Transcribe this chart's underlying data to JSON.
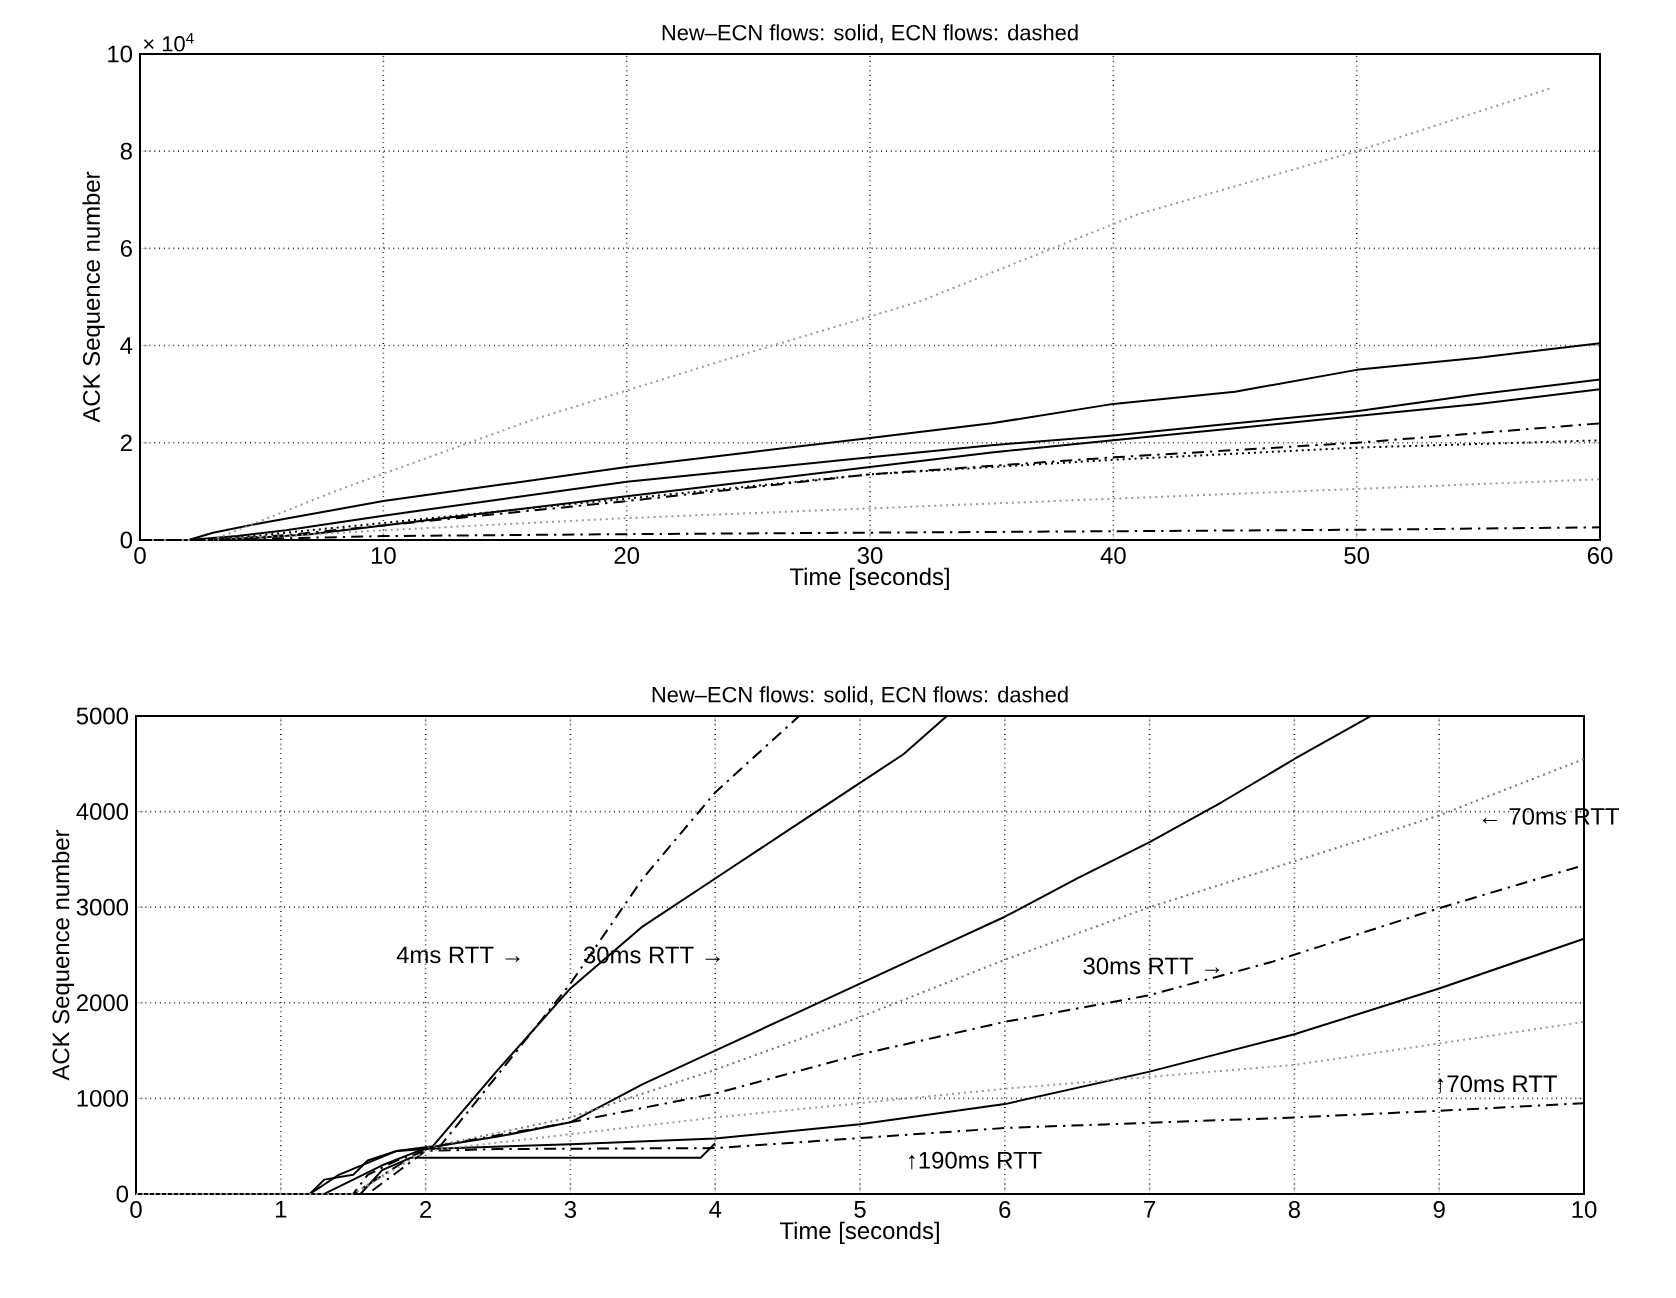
{
  "chart_data": [
    {
      "type": "line",
      "title": "New–ECN flows: solid, ECN flows: dashed",
      "xlabel": "Time [seconds]",
      "ylabel": "ACK Sequence number",
      "xlim": [
        0,
        60
      ],
      "ylim": [
        0,
        10
      ],
      "xticks": [
        0,
        10,
        20,
        30,
        40,
        50,
        60
      ],
      "yticks": [
        0,
        2,
        4,
        6,
        8,
        10
      ],
      "grid": true,
      "annotations": [
        "× 10$^{4}$"
      ],
      "series": [
        {
          "color": "#000000",
          "line_style": "solid",
          "x": [
            0,
            2,
            3,
            5,
            10,
            15,
            20,
            25,
            30,
            35,
            40,
            45,
            50,
            55,
            60
          ],
          "values": [
            0,
            0,
            0.15,
            0.35,
            0.8,
            1.15,
            1.5,
            1.8,
            2.1,
            2.4,
            2.8,
            3.05,
            3.5,
            3.75,
            4.05
          ]
        },
        {
          "color": "#000000",
          "line_style": "solid",
          "x": [
            0,
            2,
            4,
            6,
            10,
            15,
            20,
            25,
            30,
            35,
            40,
            45,
            50,
            55,
            60
          ],
          "values": [
            0,
            0,
            0.08,
            0.2,
            0.5,
            0.85,
            1.2,
            1.45,
            1.7,
            1.95,
            2.15,
            2.4,
            2.65,
            3.0,
            3.3
          ]
        },
        {
          "color": "#000000",
          "line_style": "solid",
          "x": [
            0,
            3,
            5,
            7,
            10,
            15,
            20,
            25,
            30,
            35,
            40,
            45,
            50,
            55,
            60
          ],
          "values": [
            0,
            0,
            0.05,
            0.12,
            0.3,
            0.6,
            0.9,
            1.2,
            1.5,
            1.8,
            2.05,
            2.3,
            2.55,
            2.8,
            3.1
          ]
        },
        {
          "color": "#999999",
          "line_style": "dotted",
          "x": [
            0,
            3,
            8,
            16,
            24,
            32,
            41,
            50,
            58
          ],
          "values": [
            0,
            0,
            1.0,
            2.45,
            3.7,
            4.9,
            6.7,
            8.0,
            9.3
          ]
        },
        {
          "color": "#000000",
          "line_style": "dashed",
          "x": [
            0,
            3,
            6,
            10,
            20,
            30,
            40,
            50,
            60
          ],
          "values": [
            0,
            0,
            0.1,
            0.3,
            0.8,
            1.35,
            1.7,
            2.0,
            2.4
          ]
        },
        {
          "color": "#000000",
          "line_style": "dotted",
          "x": [
            0,
            3,
            6,
            10,
            20,
            30,
            40,
            50,
            60
          ],
          "values": [
            0,
            0,
            0.15,
            0.35,
            0.85,
            1.35,
            1.65,
            1.9,
            2.05
          ]
        },
        {
          "color": "#999999",
          "line_style": "dotted",
          "x": [
            0,
            3,
            10,
            20,
            30,
            40,
            50,
            60
          ],
          "values": [
            0,
            0,
            0.2,
            0.45,
            0.65,
            0.85,
            1.05,
            1.25
          ]
        },
        {
          "color": "#000000",
          "line_style": "dashed",
          "x": [
            0,
            3,
            10,
            20,
            30,
            40,
            50,
            60
          ],
          "values": [
            0,
            0,
            0.08,
            0.12,
            0.15,
            0.18,
            0.21,
            0.26
          ]
        }
      ]
    },
    {
      "type": "line",
      "title": "New–ECN flows: solid, ECN flows: dashed",
      "xlabel": "Time [seconds]",
      "ylabel": "ACK Sequence number",
      "xlim": [
        0,
        10
      ],
      "ylim": [
        0,
        5000
      ],
      "xticks": [
        0,
        1,
        2,
        3,
        4,
        5,
        6,
        7,
        8,
        9,
        10
      ],
      "yticks": [
        0,
        1000,
        2000,
        3000,
        4000,
        5000
      ],
      "grid": true,
      "annotations": [
        "4ms RTT →",
        "30ms RTT →",
        "30ms RTT →",
        "← 70ms RTT",
        "↑70ms RTT",
        "↑190ms RTT"
      ],
      "series": [
        {
          "color": "#000000",
          "line_style": "solid",
          "x": [
            0,
            1.2,
            1.3,
            1.5,
            1.6,
            1.8,
            2.05,
            2.5,
            3,
            3.5,
            4,
            4.5,
            5,
            5.3,
            5.6
          ],
          "values": [
            0,
            0,
            150,
            200,
            350,
            450,
            500,
            1300,
            2150,
            2800,
            3300,
            3800,
            4300,
            4600,
            5000
          ]
        },
        {
          "color": "#000000",
          "line_style": "dashed",
          "x": [
            0,
            1.5,
            1.6,
            1.8,
            2.1,
            2.5,
            3,
            3.5,
            4,
            4.58
          ],
          "values": [
            0,
            0,
            200,
            350,
            500,
            1250,
            2200,
            3300,
            4200,
            5000
          ]
        },
        {
          "color": "#000000",
          "line_style": "solid",
          "x": [
            0,
            1.3,
            1.5,
            1.7,
            2,
            2.5,
            3,
            3.5,
            4,
            4.5,
            5,
            5.5,
            6,
            6.5,
            7,
            7.5,
            8,
            8.53
          ],
          "values": [
            0,
            0,
            150,
            300,
            480,
            600,
            750,
            1150,
            1500,
            1850,
            2200,
            2550,
            2900,
            3300,
            3680,
            4100,
            4550,
            5000
          ]
        },
        {
          "color": "#777777",
          "line_style": "dotted",
          "x": [
            0,
            1.5,
            2,
            3,
            4,
            5,
            6,
            7,
            8,
            9,
            10
          ],
          "values": [
            0,
            0,
            480,
            800,
            1300,
            1850,
            2450,
            3000,
            3480,
            3960,
            4550
          ]
        },
        {
          "color": "#000000",
          "line_style": "dashed",
          "x": [
            0,
            1.5,
            2,
            3,
            4,
            5,
            6,
            7,
            7.85,
            9,
            10
          ],
          "values": [
            0,
            0,
            480,
            750,
            1050,
            1460,
            1800,
            2080,
            2430,
            2990,
            3440
          ]
        },
        {
          "color": "#000000",
          "line_style": "solid",
          "x": [
            0,
            1.2,
            1.4,
            1.8,
            2,
            3,
            4,
            5,
            6,
            7,
            8,
            9,
            10
          ],
          "values": [
            0,
            0,
            200,
            450,
            470,
            520,
            580,
            730,
            940,
            1280,
            1670,
            2150,
            2670
          ]
        },
        {
          "color": "#000000",
          "line_style": "solid",
          "x": [
            0,
            1.55,
            1.7,
            1.9,
            3.9,
            4.0
          ],
          "values": [
            0,
            0,
            250,
            380,
            380,
            530
          ]
        },
        {
          "color": "#000000",
          "line_style": "dashed",
          "x": [
            0,
            1.6,
            2,
            2.5,
            4,
            6,
            8,
            9,
            10
          ],
          "values": [
            0,
            0,
            450,
            470,
            480,
            690,
            800,
            870,
            950
          ]
        },
        {
          "color": "#999999",
          "line_style": "dotted",
          "x": [
            0,
            1.5,
            2,
            4,
            6,
            8,
            10
          ],
          "values": [
            0,
            0,
            450,
            800,
            1100,
            1350,
            1800
          ]
        }
      ]
    }
  ]
}
